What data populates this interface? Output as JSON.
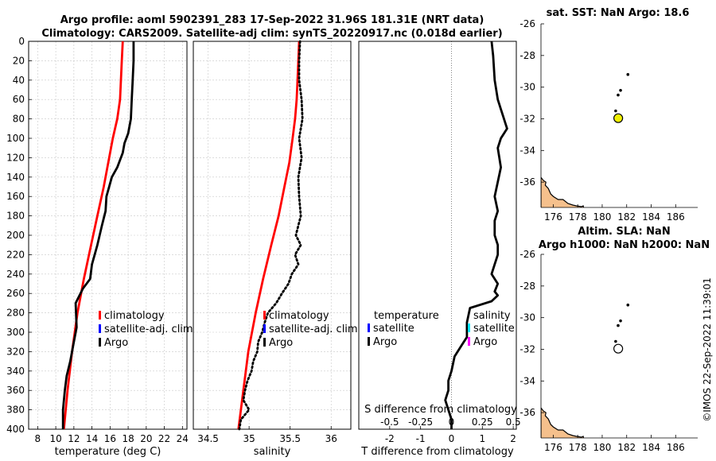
{
  "header": {
    "title_line1": "Argo profile: aoml 5902391_283 17-Sep-2022 31.96S 181.31E (NRT data)",
    "title_line2": "Climatology: CARS2009. Satellite-adj clim: synTS_20220917.nc (0.018d earlier)"
  },
  "watermark": "©IMOS 22-Sep-2022 11:39:01",
  "colors": {
    "climatology": "#ff0000",
    "argo": "#000000",
    "satellite": "#0000ff",
    "sat_salinity": "#00e5ff",
    "argo_salinity": "#ff00ff",
    "land": "#f5c08c",
    "float_marker": "#f0f000",
    "grid": "#c8c8c8"
  },
  "chart_data": [
    {
      "id": "temperature",
      "type": "line",
      "xlabel": "temperature (deg C)",
      "ylabel": "",
      "xlim": [
        7,
        24.5
      ],
      "ylim": [
        400,
        0
      ],
      "grid": true,
      "xticks": [
        8,
        10,
        12,
        14,
        16,
        18,
        20,
        22,
        24
      ],
      "yticks": [
        0,
        20,
        40,
        60,
        80,
        100,
        120,
        140,
        160,
        180,
        200,
        220,
        240,
        260,
        280,
        300,
        320,
        340,
        360,
        380,
        400
      ],
      "legend": [
        "climatology",
        "satellite-adj. clim",
        "Argo"
      ],
      "legend_position": "lower-right",
      "series": [
        {
          "name": "climatology",
          "style": "solid",
          "x": [
            17.4,
            17.3,
            17.2,
            17.1,
            16.8,
            16.3,
            15.8,
            15.3,
            14.6,
            13.9,
            13.1,
            12.4,
            11.8,
            11.3,
            10.9
          ],
          "y": [
            0,
            20,
            40,
            60,
            80,
            100,
            125,
            150,
            180,
            210,
            245,
            280,
            320,
            360,
            400
          ]
        },
        {
          "name": "Argo",
          "style": "solid",
          "x": [
            18.6,
            18.6,
            18.5,
            18.4,
            18.3,
            18.0,
            17.6,
            17.4,
            16.8,
            16.2,
            15.6,
            15.5,
            15.1,
            14.6,
            14.0,
            13.8,
            13.0,
            12.2,
            12.3,
            11.9,
            11.6,
            11.2,
            11.0,
            10.8,
            10.8
          ],
          "y": [
            0,
            20,
            40,
            60,
            80,
            95,
            105,
            115,
            130,
            140,
            160,
            175,
            190,
            210,
            230,
            245,
            255,
            270,
            295,
            315,
            330,
            345,
            360,
            380,
            400
          ]
        }
      ]
    },
    {
      "id": "salinity",
      "type": "line",
      "xlabel": "salinity",
      "ylabel": "",
      "xlim": [
        34.32,
        36.24
      ],
      "ylim": [
        400,
        0
      ],
      "grid": true,
      "xticks": [
        34.5,
        35,
        35.5,
        36
      ],
      "legend": [
        "climatology",
        "satellite-adj. clim",
        "Argo"
      ],
      "legend_position": "lower-right",
      "series": [
        {
          "name": "climatology",
          "style": "solid",
          "x": [
            35.61,
            35.6,
            35.59,
            35.58,
            35.56,
            35.53,
            35.49,
            35.43,
            35.36,
            35.27,
            35.17,
            35.08,
            34.99,
            34.93,
            34.87
          ],
          "y": [
            0,
            20,
            40,
            60,
            80,
            100,
            125,
            150,
            180,
            210,
            245,
            280,
            320,
            360,
            400
          ]
        },
        {
          "name": "Argo",
          "style": "dotted",
          "x": [
            35.62,
            35.61,
            35.61,
            35.64,
            35.65,
            35.61,
            35.64,
            35.6,
            35.61,
            35.63,
            35.57,
            35.63,
            35.56,
            35.6,
            35.52,
            35.48,
            35.4,
            35.33,
            35.23,
            35.19,
            35.16,
            35.11,
            35.1,
            35.05,
            35.03,
            34.98,
            34.95,
            34.93,
            35.0,
            34.9,
            34.88
          ],
          "y": [
            0,
            20,
            40,
            60,
            80,
            100,
            120,
            140,
            160,
            180,
            200,
            210,
            220,
            230,
            240,
            250,
            260,
            270,
            280,
            290,
            300,
            310,
            320,
            330,
            340,
            350,
            360,
            370,
            380,
            390,
            400
          ]
        }
      ]
    },
    {
      "id": "difference",
      "type": "line",
      "xlabel": "T difference from climatology",
      "top_xlabel": "S difference from climatology",
      "xlim": [
        -3,
        2.1
      ],
      "ylim": [
        400,
        0
      ],
      "grid": false,
      "xticks": [
        -2,
        -1,
        0,
        1,
        2
      ],
      "top_ticks": [
        [
          "-0.5",
          -2
        ],
        [
          "-0.25",
          -1
        ],
        [
          "0",
          0
        ],
        [
          "0.25",
          1
        ],
        [
          "0.5",
          2
        ]
      ],
      "legend_groups": [
        {
          "title": "temperature",
          "items": [
            "satellite",
            "Argo"
          ]
        },
        {
          "title": "salinity",
          "items": [
            "satellite",
            "Argo"
          ]
        }
      ],
      "legend_position": "lower-center",
      "series": [
        {
          "name": "T difference (Argo)",
          "style": "solid",
          "x": [
            1.3,
            1.35,
            1.4,
            1.5,
            1.6,
            1.7,
            1.8,
            1.6,
            1.5,
            1.6,
            1.5,
            1.4,
            1.5,
            1.4,
            1.4,
            1.5,
            1.5,
            1.4,
            1.3,
            1.5,
            1.4,
            1.5,
            1.3,
            0.6,
            0.5,
            0.5,
            0.3,
            0.1,
            0.0,
            -0.1,
            -0.1,
            -0.2,
            -0.1,
            0.0,
            0.0
          ],
          "y": [
            0,
            15,
            40,
            60,
            70,
            80,
            90,
            100,
            110,
            130,
            145,
            160,
            175,
            185,
            200,
            210,
            220,
            230,
            240,
            250,
            258,
            262,
            268,
            275,
            290,
            305,
            315,
            325,
            340,
            350,
            360,
            370,
            380,
            390,
            400
          ]
        }
      ]
    },
    {
      "id": "map-sst",
      "type": "scatter",
      "title": "sat. SST: NaN Argo: 18.6",
      "xlim": [
        175,
        187.8
      ],
      "ylim": [
        -37.6,
        -26
      ],
      "xticks": [
        176,
        178,
        180,
        182,
        184,
        186
      ],
      "yticks": [
        -26,
        -28,
        -30,
        -32,
        -34,
        -36
      ],
      "track_x": [
        182.1,
        181.5,
        181.3,
        181.1
      ],
      "track_y": [
        -29.2,
        -30.2,
        -30.5,
        -31.5
      ],
      "float_x": 181.31,
      "float_y": -31.96
    },
    {
      "id": "map-sla",
      "type": "scatter",
      "title_line1": "Altim. SLA: NaN",
      "title_line2": "Argo h1000: NaN h2000: NaN",
      "xlim": [
        175,
        187.8
      ],
      "ylim": [
        -37.6,
        -26
      ],
      "xticks": [
        176,
        178,
        180,
        182,
        184,
        186
      ],
      "yticks": [
        -26,
        -28,
        -30,
        -32,
        -34,
        -36
      ],
      "track_x": [
        182.1,
        181.5,
        181.3,
        181.1
      ],
      "track_y": [
        -29.2,
        -30.2,
        -30.5,
        -31.5
      ],
      "float_x": 181.31,
      "float_y": -31.96
    }
  ]
}
